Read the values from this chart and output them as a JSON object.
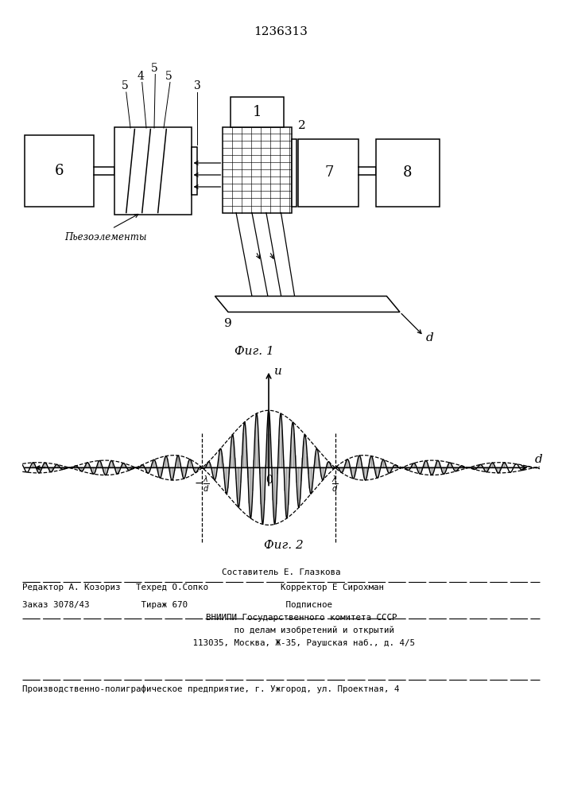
{
  "title": "1236313",
  "title_fontsize": 11,
  "bg_color": "#ffffff",
  "fig1_caption": "Фиг. 1",
  "fig2_caption": "Фиг. 2",
  "footer_lines": [
    "Составитель Е. Глазкова",
    "Редактор А. Козориз   Техред О.Сопко              Корректор Е Сирохман",
    "Заказ 3078/43          Тираж 670                   Подписное",
    "        ВНИИПИ Государственного комитета СССР",
    "             по делам изобретений и открытий",
    "         113035, Москва, Ж-35, Раушская наб., д. 4/5",
    "Производственно-полиграфическое предприятие, г. Ужгород, ул. Проектная, 4"
  ],
  "line_color": "#000000",
  "axis_label_u": "u",
  "axis_label_d": "d"
}
